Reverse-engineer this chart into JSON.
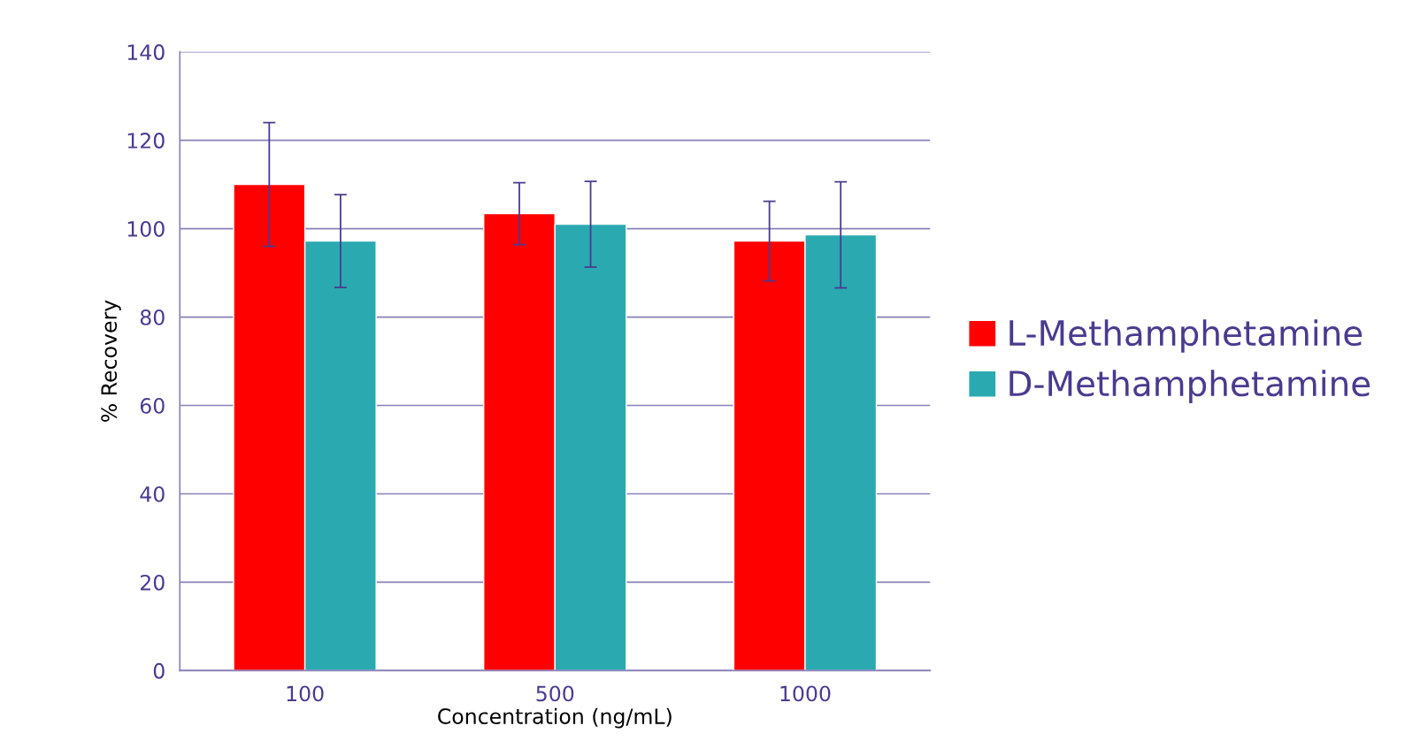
{
  "chart_data": {
    "type": "bar",
    "xlabel": "Concentration (ng/mL)",
    "ylabel": "% Recovery",
    "categories": [
      "100",
      "500",
      "1000"
    ],
    "series": [
      {
        "name": "L-Methamphetamine",
        "color": "#ff0000",
        "values": [
          110,
          103.4,
          97.2
        ],
        "errors": [
          14,
          7,
          9
        ]
      },
      {
        "name": "D-Methamphetamine",
        "color": "#2aa9b1",
        "values": [
          97.2,
          101,
          98.6
        ],
        "errors": [
          10.5,
          9.7,
          12
        ]
      }
    ],
    "ylim": [
      0,
      140
    ],
    "yticks": [
      0,
      20,
      40,
      60,
      80,
      100,
      120,
      140
    ],
    "grid": "y",
    "legend": "right"
  }
}
